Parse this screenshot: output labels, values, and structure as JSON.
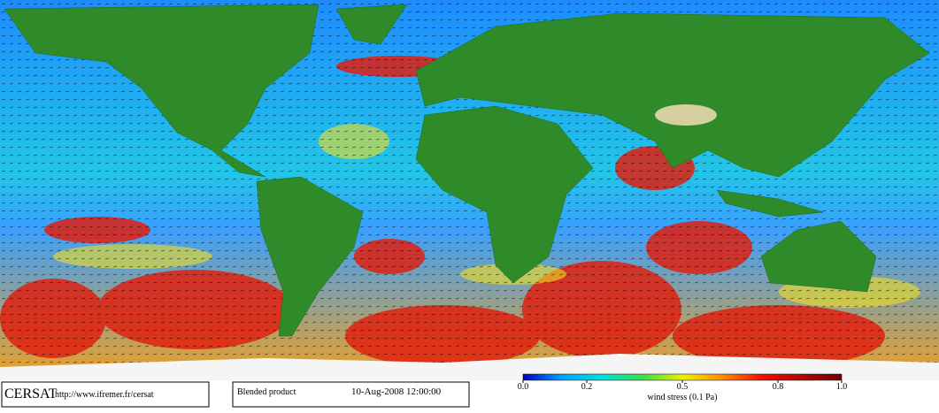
{
  "footer": {
    "logo": "CERSAT",
    "url": "http://www.ifremer.fr/cersat",
    "product": "Blended product",
    "date": "10-Aug-2008 12:00:00"
  },
  "colorbar": {
    "label": "wind stress (0.1 Pa)",
    "lim": [
      0,
      1
    ],
    "ticks": [
      {
        "value": 0,
        "label": "0.0"
      },
      {
        "value": 0.2,
        "label": "0.2"
      },
      {
        "value": 0.5,
        "label": "0.5"
      },
      {
        "value": 0.8,
        "label": "0.8"
      },
      {
        "value": 1,
        "label": "1.0"
      }
    ]
  }
}
